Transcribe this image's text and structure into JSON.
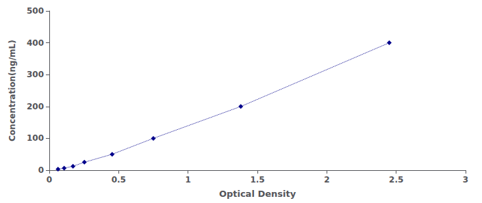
{
  "chart_data": {
    "type": "line",
    "x": [
      0.063,
      0.107,
      0.171,
      0.253,
      0.453,
      0.75,
      1.38,
      2.45
    ],
    "values": [
      3.125,
      6.25,
      12.5,
      25,
      50,
      100,
      200,
      400
    ],
    "color": "#00008B",
    "marker": "diamond",
    "line_style": "dotted",
    "xlabel": "Optical Density",
    "ylabel": "Concentration(ng/mL)",
    "xlim": [
      0,
      3
    ],
    "ylim": [
      0,
      500
    ],
    "xticks": [
      0,
      0.5,
      1,
      1.5,
      2,
      2.5,
      3
    ],
    "yticks": [
      0,
      100,
      200,
      300,
      400,
      500
    ],
    "grid": false
  }
}
